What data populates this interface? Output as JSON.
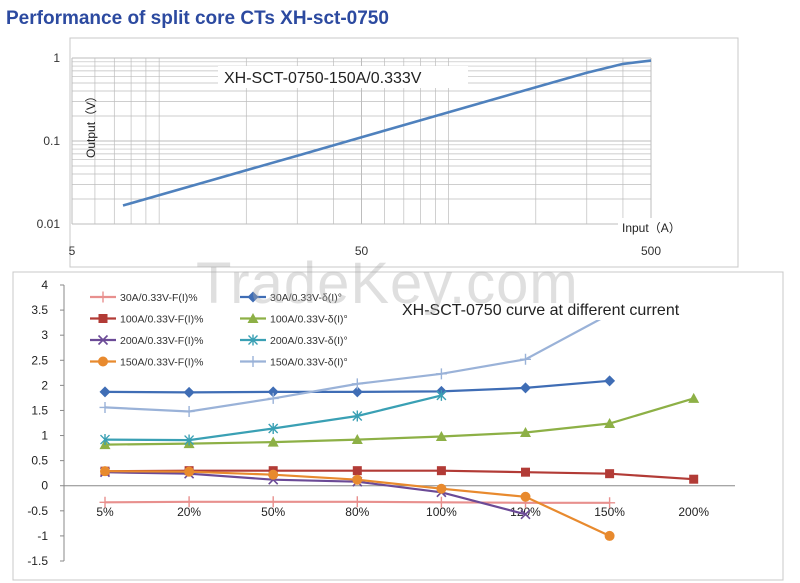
{
  "page": {
    "title": "Performance of split core CTs XH-sct-0750"
  },
  "chart_data": [
    {
      "type": "line",
      "title": "XH-SCT-0750-150A/0.333V",
      "xlabel": "Input（A）",
      "ylabel": "Output（V）",
      "x_scale": "log",
      "y_scale": "log",
      "xlim": [
        5,
        500
      ],
      "ylim": [
        0.01,
        1
      ],
      "x_ticks": [
        "5",
        "50",
        "500"
      ],
      "y_ticks": [
        "0.01",
        "0.1",
        "1"
      ],
      "grid": true,
      "series": [
        {
          "x": [
            7.5,
            15,
            30,
            50,
            100,
            150,
            200,
            300,
            400,
            500
          ],
          "y": [
            0.0167,
            0.0333,
            0.0666,
            0.111,
            0.222,
            0.333,
            0.444,
            0.666,
            0.85,
            0.93
          ]
        }
      ]
    },
    {
      "type": "line",
      "title": "XH-SCT-0750  curve at different  current",
      "categories": [
        "5%",
        "20%",
        "50%",
        "80%",
        "100%",
        "120%",
        "150%",
        "200%"
      ],
      "ylim": [
        -1.5,
        4
      ],
      "y_ticks": [
        "4",
        "3.5",
        "3",
        "2.5",
        "2",
        "1.5",
        "1",
        "0.5",
        "0",
        "-0.5",
        "-1",
        "-1.5"
      ],
      "grid": false,
      "legend": "top-left",
      "series": [
        {
          "name": "30A/0.33V-F(I)%",
          "color": "#e8908e",
          "marker": "plus",
          "values": [
            -0.33,
            -0.32,
            -0.32,
            -0.32,
            -0.33,
            -0.34,
            -0.34,
            null
          ]
        },
        {
          "name": "30A/0.33V-δ(I)°",
          "color": "#3f6db5",
          "marker": "diamond",
          "values": [
            1.87,
            1.86,
            1.87,
            1.87,
            1.88,
            1.95,
            2.09,
            null
          ]
        },
        {
          "name": "100A/0.33V-F(I)%",
          "color": "#b23b36",
          "marker": "square",
          "values": [
            0.29,
            0.3,
            0.3,
            0.3,
            0.3,
            0.27,
            0.24,
            0.13
          ]
        },
        {
          "name": "100A/0.33V-δ(I)°",
          "color": "#8db046",
          "marker": "triangle",
          "values": [
            0.82,
            0.84,
            0.87,
            0.92,
            0.98,
            1.06,
            1.24,
            1.74
          ]
        },
        {
          "name": "200A/0.33V-F(I)%",
          "color": "#6b4a96",
          "marker": "x",
          "values": [
            0.27,
            0.24,
            0.12,
            0.08,
            -0.13,
            -0.57,
            null,
            null
          ]
        },
        {
          "name": "200A/0.33V-δ(I)°",
          "color": "#3aa0b4",
          "marker": "asterisk",
          "values": [
            0.92,
            0.91,
            1.14,
            1.39,
            1.8,
            null,
            null,
            null
          ]
        },
        {
          "name": "150A/0.33V-F(I)%",
          "color": "#e88a2e",
          "marker": "circle",
          "values": [
            0.29,
            0.28,
            0.22,
            0.12,
            -0.06,
            -0.22,
            -1.0,
            null
          ]
        },
        {
          "name": "150A/0.33V-δ(I)°",
          "color": "#9ab2d8",
          "marker": "plus",
          "values": [
            1.56,
            1.48,
            1.74,
            2.03,
            2.23,
            2.52,
            3.42,
            null
          ]
        }
      ]
    }
  ],
  "watermark": "TradeKey.com"
}
